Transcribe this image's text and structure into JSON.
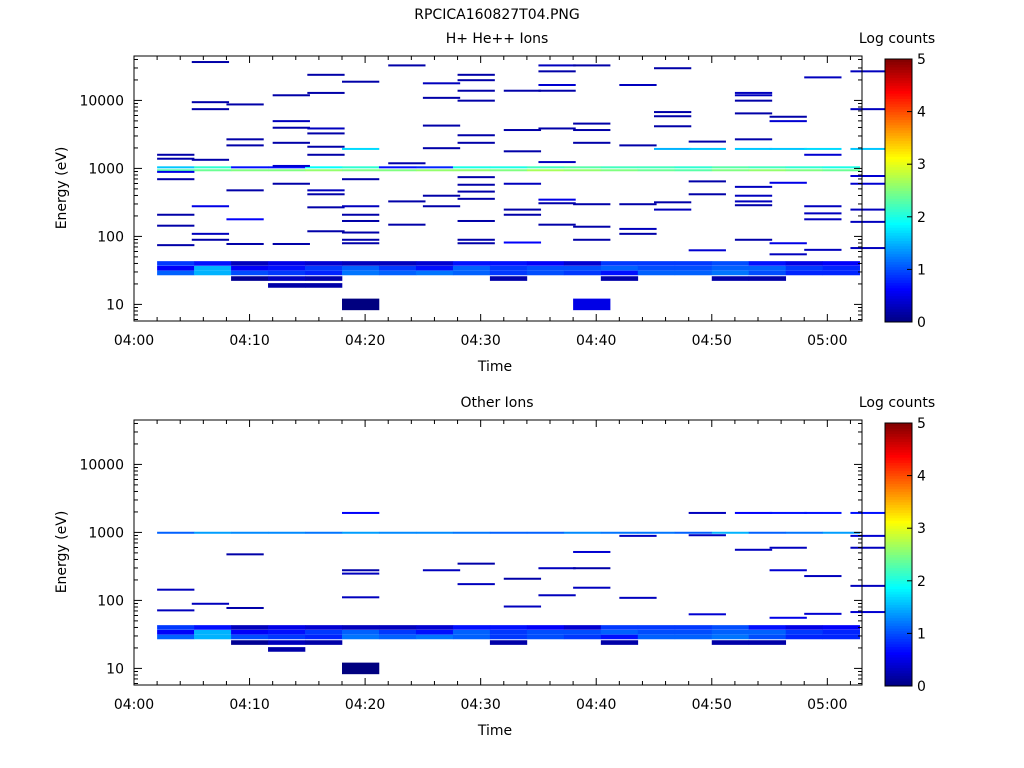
{
  "figure_title": "RPCICA160827T04.PNG",
  "chart_data": [
    {
      "type": "heatmap",
      "title": "H+ He++ Ions",
      "xlabel": "Time",
      "ylabel": "Energy (eV)",
      "y_scale": "log",
      "ylim": [
        5.7,
        45000
      ],
      "xlim": [
        "04:00",
        "05:03"
      ],
      "x_ticks": [
        "04:00",
        "04:10",
        "04:20",
        "04:30",
        "04:40",
        "04:50",
        "05:00"
      ],
      "y_ticks": [
        "10",
        "100",
        "1000",
        "10000"
      ],
      "colorbar": {
        "label": "Log counts",
        "range": [
          0,
          5
        ],
        "ticks": [
          "0",
          "1",
          "2",
          "3",
          "4",
          "5"
        ]
      },
      "legend": "right",
      "grid": false,
      "cells": [
        [
          "04:02",
          1600,
          0.2
        ],
        [
          "04:02",
          1400,
          0.2
        ],
        [
          "04:02",
          900,
          0.5
        ],
        [
          "04:02",
          700,
          0.2
        ],
        [
          "04:02",
          210,
          0.2
        ],
        [
          "04:02",
          145,
          0.2
        ],
        [
          "04:02",
          75,
          0.2
        ],
        [
          "04:05",
          37000,
          0.2
        ],
        [
          "04:05",
          9500,
          0.2
        ],
        [
          "04:05",
          7500,
          0.2
        ],
        [
          "04:05",
          1350,
          0.2
        ],
        [
          "04:05",
          280,
          0.5
        ],
        [
          "04:05",
          110,
          0.3
        ],
        [
          "04:05",
          90,
          0.2
        ],
        [
          "04:08",
          8800,
          0.2
        ],
        [
          "04:08",
          2700,
          0.2
        ],
        [
          "04:08",
          2200,
          0.2
        ],
        [
          "04:08",
          480,
          0.2
        ],
        [
          "04:08",
          180,
          0.6
        ],
        [
          "04:08",
          78,
          0.2
        ],
        [
          "04:12",
          12000,
          0.2
        ],
        [
          "04:12",
          5000,
          0.3
        ],
        [
          "04:12",
          4000,
          0.2
        ],
        [
          "04:12",
          2400,
          0.2
        ],
        [
          "04:12",
          1100,
          0.4
        ],
        [
          "04:12",
          600,
          0.2
        ],
        [
          "04:12",
          78,
          0.2
        ],
        [
          "04:15",
          24000,
          0.2
        ],
        [
          "04:15",
          13000,
          0.2
        ],
        [
          "04:15",
          3900,
          0.3
        ],
        [
          "04:15",
          3300,
          0.2
        ],
        [
          "04:15",
          2100,
          0.2
        ],
        [
          "04:15",
          1600,
          0.2
        ],
        [
          "04:15",
          480,
          0.3
        ],
        [
          "04:15",
          420,
          0.2
        ],
        [
          "04:15",
          270,
          0.2
        ],
        [
          "04:15",
          120,
          0.2
        ],
        [
          "04:18",
          19000,
          0.2
        ],
        [
          "04:18",
          1950,
          1.7
        ],
        [
          "04:18",
          700,
          0.2
        ],
        [
          "04:18",
          280,
          0.3
        ],
        [
          "04:18",
          210,
          0.2
        ],
        [
          "04:18",
          170,
          0.2
        ],
        [
          "04:18",
          115,
          0.2
        ],
        [
          "04:18",
          90,
          0.2
        ],
        [
          "04:18",
          80,
          0.2
        ],
        [
          "04:18",
          10,
          0.0
        ],
        [
          "04:22",
          33000,
          0.2
        ],
        [
          "04:22",
          1200,
          0.2
        ],
        [
          "04:22",
          330,
          0.2
        ],
        [
          "04:22",
          150,
          0.2
        ],
        [
          "04:25",
          18000,
          0.3
        ],
        [
          "04:25",
          11000,
          0.2
        ],
        [
          "04:25",
          4300,
          0.2
        ],
        [
          "04:25",
          2000,
          0.2
        ],
        [
          "04:25",
          400,
          0.2
        ],
        [
          "04:25",
          280,
          0.2
        ],
        [
          "04:28",
          24000,
          0.2
        ],
        [
          "04:28",
          20000,
          0.2
        ],
        [
          "04:28",
          14000,
          0.2
        ],
        [
          "04:28",
          10000,
          0.2
        ],
        [
          "04:28",
          3100,
          0.2
        ],
        [
          "04:28",
          2400,
          0.2
        ],
        [
          "04:28",
          750,
          0.2
        ],
        [
          "04:28",
          580,
          0.2
        ],
        [
          "04:28",
          460,
          0.2
        ],
        [
          "04:28",
          360,
          0.2
        ],
        [
          "04:28",
          170,
          0.2
        ],
        [
          "04:28",
          90,
          0.2
        ],
        [
          "04:28",
          80,
          0.2
        ],
        [
          "04:32",
          14000,
          0.2
        ],
        [
          "04:32",
          3700,
          0.2
        ],
        [
          "04:32",
          1800,
          0.2
        ],
        [
          "04:32",
          600,
          0.3
        ],
        [
          "04:32",
          250,
          0.2
        ],
        [
          "04:32",
          210,
          0.2
        ],
        [
          "04:32",
          82,
          0.6
        ],
        [
          "04:35",
          33000,
          0.3
        ],
        [
          "04:35",
          27000,
          0.2
        ],
        [
          "04:35",
          17000,
          0.4
        ],
        [
          "04:35",
          14000,
          0.2
        ],
        [
          "04:35",
          3900,
          0.2
        ],
        [
          "04:35",
          1250,
          0.3
        ],
        [
          "04:35",
          350,
          0.5
        ],
        [
          "04:35",
          310,
          0.2
        ],
        [
          "04:35",
          150,
          0.2
        ],
        [
          "04:38",
          33000,
          0.2
        ],
        [
          "04:38",
          4600,
          0.2
        ],
        [
          "04:38",
          3700,
          0.2
        ],
        [
          "04:38",
          2400,
          0.2
        ],
        [
          "04:38",
          300,
          0.2
        ],
        [
          "04:38",
          140,
          0.2
        ],
        [
          "04:38",
          90,
          0.2
        ],
        [
          "04:38",
          10,
          0.5
        ],
        [
          "04:42",
          17000,
          0.3
        ],
        [
          "04:42",
          2200,
          0.2
        ],
        [
          "04:42",
          300,
          0.2
        ],
        [
          "04:42",
          130,
          0.3
        ],
        [
          "04:42",
          110,
          0.2
        ],
        [
          "04:45",
          30000,
          0.2
        ],
        [
          "04:45",
          6800,
          0.2
        ],
        [
          "04:45",
          5900,
          0.2
        ],
        [
          "04:45",
          4200,
          0.2
        ],
        [
          "04:45",
          1950,
          1.5
        ],
        [
          "04:45",
          320,
          0.2
        ],
        [
          "04:45",
          250,
          0.3
        ],
        [
          "04:48",
          2500,
          0.2
        ],
        [
          "04:48",
          1950,
          1.6
        ],
        [
          "04:48",
          650,
          0.2
        ],
        [
          "04:48",
          420,
          0.2
        ],
        [
          "04:48",
          63,
          0.4
        ],
        [
          "04:52",
          13000,
          0.3
        ],
        [
          "04:52",
          12000,
          0.3
        ],
        [
          "04:52",
          10000,
          0.2
        ],
        [
          "04:52",
          6500,
          0.2
        ],
        [
          "04:52",
          2700,
          0.2
        ],
        [
          "04:52",
          1950,
          1.6
        ],
        [
          "04:52",
          540,
          0.3
        ],
        [
          "04:52",
          400,
          0.3
        ],
        [
          "04:52",
          330,
          0.3
        ],
        [
          "04:52",
          290,
          0.2
        ],
        [
          "04:52",
          90,
          0.2
        ],
        [
          "04:55",
          5800,
          0.2
        ],
        [
          "04:55",
          5000,
          0.4
        ],
        [
          "04:55",
          1950,
          1.6
        ],
        [
          "04:55",
          620,
          0.5
        ],
        [
          "04:55",
          80,
          0.5
        ],
        [
          "04:55",
          55,
          0.3
        ],
        [
          "04:58",
          22000,
          0.3
        ],
        [
          "04:58",
          1950,
          1.7
        ],
        [
          "04:58",
          1600,
          0.4
        ],
        [
          "04:58",
          280,
          0.3
        ],
        [
          "04:58",
          220,
          0.3
        ],
        [
          "04:58",
          180,
          0.3
        ],
        [
          "04:58",
          64,
          0.3
        ],
        [
          "05:02",
          27000,
          0.3
        ],
        [
          "05:02",
          7500,
          0.3
        ],
        [
          "05:02",
          1950,
          1.6
        ],
        [
          "05:02",
          780,
          0.4
        ],
        [
          "05:02",
          600,
          0.4
        ],
        [
          "05:02",
          250,
          0.3
        ],
        [
          "05:02",
          165,
          0.3
        ],
        [
          "05:02",
          68,
          0.3
        ]
      ],
      "rows": [
        {
          "energy": 1050,
          "values": [
            1.6,
            2.1,
            0.7,
            0.7,
            1.9,
            2.1,
            0.7,
            0.8,
            2.0,
            2.0,
            2.2,
            2.3,
            2.2,
            2.2,
            2.1,
            2.3,
            2.2,
            2.1,
            2.0
          ]
        },
        {
          "energy": 950,
          "values": [
            2.3,
            2.4,
            2.5,
            2.5,
            2.6,
            2.5,
            2.5,
            2.6,
            2.6,
            2.5,
            2.7,
            2.6,
            2.5,
            2.4,
            2.3,
            2.5,
            2.6,
            2.5,
            2.4
          ]
        },
        {
          "energy": 40,
          "values": [
            0.9,
            0.7,
            0.3,
            0.5,
            0.4,
            0.3,
            0.3,
            0.4,
            0.7,
            0.7,
            0.6,
            0.4,
            0.9,
            0.9,
            0.9,
            1.0,
            0.7,
            0.5,
            0.6
          ]
        },
        {
          "energy": 34,
          "values": [
            0.6,
            1.5,
            0.6,
            0.7,
            0.9,
            1.1,
            0.9,
            0.7,
            1.1,
            0.9,
            1.0,
            1.0,
            1.1,
            1.0,
            1.0,
            1.1,
            1.1,
            0.9,
            0.8
          ]
        },
        {
          "energy": 29,
          "values": [
            1.1,
            1.5,
            1.0,
            0.9,
            0.8,
            1.2,
            1.1,
            1.2,
            1.1,
            0.9,
            1.0,
            0.9,
            0.7,
            1.1,
            1.1,
            1.2,
            1.0,
            0.8,
            0.8
          ]
        },
        {
          "energy": 24,
          "values": [
            null,
            null,
            0.1,
            0.3,
            0.2,
            null,
            null,
            null,
            null,
            0.2,
            null,
            null,
            0.2,
            null,
            null,
            0.2,
            0.2,
            null,
            null
          ]
        },
        {
          "energy": 19,
          "values": [
            null,
            null,
            null,
            0.2,
            0.2,
            null,
            null,
            null,
            null,
            null,
            null,
            null,
            null,
            null,
            null,
            null,
            null,
            null,
            null
          ]
        }
      ]
    },
    {
      "type": "heatmap",
      "title": "Other Ions",
      "xlabel": "Time",
      "ylabel": "Energy (eV)",
      "y_scale": "log",
      "ylim": [
        5.7,
        45000
      ],
      "xlim": [
        "04:00",
        "05:03"
      ],
      "x_ticks": [
        "04:00",
        "04:10",
        "04:20",
        "04:30",
        "04:40",
        "04:50",
        "05:00"
      ],
      "y_ticks": [
        "10",
        "100",
        "1000",
        "10000"
      ],
      "colorbar": {
        "label": "Log counts",
        "range": [
          0,
          5
        ],
        "ticks": [
          "0",
          "1",
          "2",
          "3",
          "4",
          "5"
        ]
      },
      "legend": "right",
      "grid": false,
      "cells": [
        [
          "04:02",
          145,
          0.3
        ],
        [
          "04:02",
          72,
          0.3
        ],
        [
          "04:05",
          90,
          0.3
        ],
        [
          "04:08",
          480,
          0.2
        ],
        [
          "04:08",
          78,
          0.2
        ],
        [
          "04:18",
          1950,
          0.6
        ],
        [
          "04:18",
          280,
          0.2
        ],
        [
          "04:18",
          250,
          0.3
        ],
        [
          "04:18",
          112,
          0.3
        ],
        [
          "04:18",
          10,
          0.0
        ],
        [
          "04:25",
          280,
          0.3
        ],
        [
          "04:28",
          350,
          0.2
        ],
        [
          "04:28",
          175,
          0.3
        ],
        [
          "04:32",
          210,
          0.2
        ],
        [
          "04:32",
          82,
          0.3
        ],
        [
          "04:35",
          300,
          0.3
        ],
        [
          "04:35",
          120,
          0.3
        ],
        [
          "04:38",
          520,
          0.4
        ],
        [
          "04:38",
          300,
          0.2
        ],
        [
          "04:38",
          155,
          0.3
        ],
        [
          "04:42",
          900,
          0.3
        ],
        [
          "04:42",
          110,
          0.3
        ],
        [
          "04:48",
          1950,
          0.3
        ],
        [
          "04:48",
          920,
          0.3
        ],
        [
          "04:48",
          63,
          0.4
        ],
        [
          "04:52",
          1950,
          0.6
        ],
        [
          "04:52",
          560,
          0.3
        ],
        [
          "04:55",
          1950,
          0.7
        ],
        [
          "04:55",
          600,
          0.3
        ],
        [
          "04:55",
          280,
          0.4
        ],
        [
          "04:55",
          56,
          0.5
        ],
        [
          "04:58",
          1950,
          0.7
        ],
        [
          "04:58",
          230,
          0.3
        ],
        [
          "04:58",
          64,
          0.4
        ],
        [
          "05:02",
          1950,
          0.7
        ],
        [
          "05:02",
          900,
          0.4
        ],
        [
          "05:02",
          600,
          0.3
        ],
        [
          "05:02",
          165,
          0.3
        ],
        [
          "05:02",
          68,
          0.4
        ]
      ],
      "rows": [
        {
          "energy": 1000,
          "values": [
            1.1,
            1.4,
            1.3,
            1.3,
            1.2,
            1.4,
            1.3,
            1.3,
            1.2,
            1.1,
            1.1,
            1.3,
            1.2,
            1.2,
            1.1,
            1.5,
            1.1,
            1.2,
            1.4
          ]
        },
        {
          "energy": 40,
          "values": [
            0.9,
            0.7,
            0.3,
            0.5,
            0.4,
            0.3,
            0.3,
            0.4,
            0.7,
            0.7,
            0.6,
            0.4,
            0.9,
            0.9,
            0.9,
            1.0,
            0.7,
            0.5,
            0.6
          ]
        },
        {
          "energy": 34,
          "values": [
            0.6,
            1.5,
            0.6,
            0.7,
            0.9,
            1.1,
            0.9,
            0.7,
            1.1,
            0.9,
            1.0,
            1.0,
            1.1,
            1.0,
            1.0,
            1.1,
            1.1,
            0.9,
            0.8
          ]
        },
        {
          "energy": 29,
          "values": [
            1.1,
            1.5,
            1.0,
            0.9,
            0.8,
            1.2,
            1.1,
            1.2,
            1.1,
            0.9,
            1.0,
            0.9,
            0.7,
            1.1,
            1.1,
            1.2,
            1.0,
            0.8,
            0.8
          ]
        },
        {
          "energy": 24,
          "values": [
            null,
            null,
            0.1,
            0.3,
            0.2,
            null,
            null,
            null,
            null,
            0.2,
            null,
            null,
            0.2,
            null,
            null,
            0.2,
            0.2,
            null,
            null
          ]
        },
        {
          "energy": 19,
          "values": [
            null,
            null,
            null,
            0.2,
            null,
            null,
            null,
            null,
            null,
            null,
            null,
            null,
            null,
            null,
            null,
            null,
            null,
            null,
            null
          ]
        }
      ]
    }
  ]
}
